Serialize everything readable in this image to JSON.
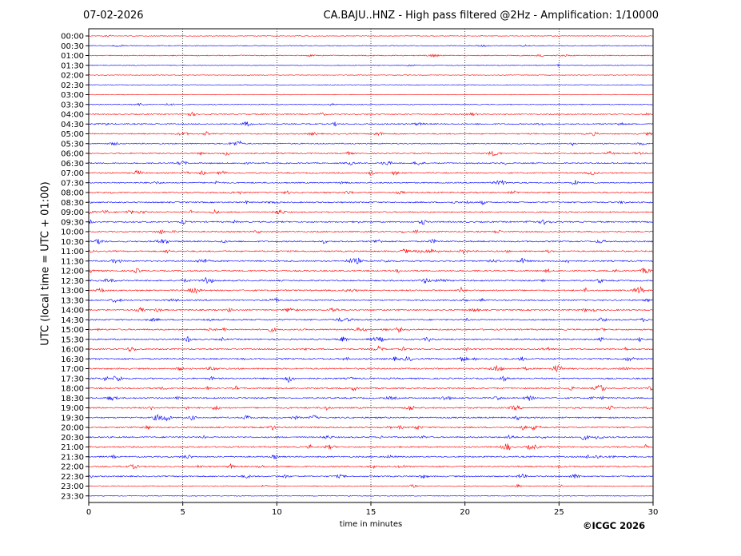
{
  "header": {
    "date": "07-02-2026",
    "title": "CA.BAJU..HNZ - High pass filtered @2Hz - Amplification: 1/10000"
  },
  "footer": {
    "copyright": "©ICGC 2026"
  },
  "chart_data": {
    "type": "line",
    "title": "CA.BAJU..HNZ - High pass filtered @2Hz - Amplification: 1/10000",
    "xlabel": "time in minutes",
    "ylabel": "UTC (local time = UTC + 01:00)",
    "xlim": [
      0,
      30
    ],
    "x_ticks": [
      0,
      5,
      10,
      15,
      20,
      25,
      30
    ],
    "x_tick_labels": [
      "0",
      "5",
      "10",
      "15",
      "20",
      "25",
      "30"
    ],
    "grid": "vertical dotted lines at x = 5, 10, 15, 20, 25",
    "legend": "none",
    "trace_colors": [
      "#ff0000",
      "#0000ff"
    ],
    "rows": [
      "00:00",
      "00:30",
      "01:00",
      "01:30",
      "02:00",
      "02:30",
      "03:00",
      "03:30",
      "04:00",
      "04:30",
      "05:00",
      "05:30",
      "06:00",
      "06:30",
      "07:00",
      "07:30",
      "08:00",
      "08:30",
      "09:00",
      "09:30",
      "10:00",
      "10:30",
      "11:00",
      "11:30",
      "12:00",
      "12:30",
      "13:00",
      "13:30",
      "14:00",
      "14:30",
      "15:00",
      "15:30",
      "16:00",
      "16:30",
      "17:00",
      "17:30",
      "18:00",
      "18:30",
      "19:00",
      "19:30",
      "20:00",
      "20:30",
      "21:00",
      "21:30",
      "22:00",
      "22:30",
      "23:00",
      "23:30"
    ],
    "row_colors": [
      "red",
      "blue",
      "red",
      "blue",
      "red",
      "blue",
      "red",
      "blue",
      "red",
      "blue",
      "red",
      "blue",
      "red",
      "blue",
      "red",
      "blue",
      "red",
      "blue",
      "red",
      "blue",
      "red",
      "blue",
      "red",
      "blue",
      "red",
      "blue",
      "red",
      "blue",
      "red",
      "blue",
      "red",
      "blue",
      "red",
      "blue",
      "red",
      "blue",
      "red",
      "blue",
      "red",
      "blue",
      "red",
      "blue",
      "red",
      "blue",
      "red",
      "blue",
      "red",
      "blue"
    ],
    "trace_activity": [
      0.1,
      0.3,
      0.45,
      0.2,
      0.05,
      0.05,
      0.05,
      0.3,
      0.55,
      0.7,
      0.65,
      0.6,
      0.7,
      0.7,
      0.75,
      0.7,
      0.8,
      0.75,
      0.75,
      0.85,
      0.8,
      0.85,
      0.85,
      0.9,
      0.85,
      0.85,
      0.9,
      0.85,
      0.85,
      0.85,
      0.9,
      0.9,
      0.9,
      0.9,
      0.9,
      0.9,
      0.85,
      0.85,
      0.9,
      0.9,
      0.85,
      0.85,
      0.85,
      0.85,
      0.8,
      0.75,
      0.4,
      0.1
    ]
  }
}
